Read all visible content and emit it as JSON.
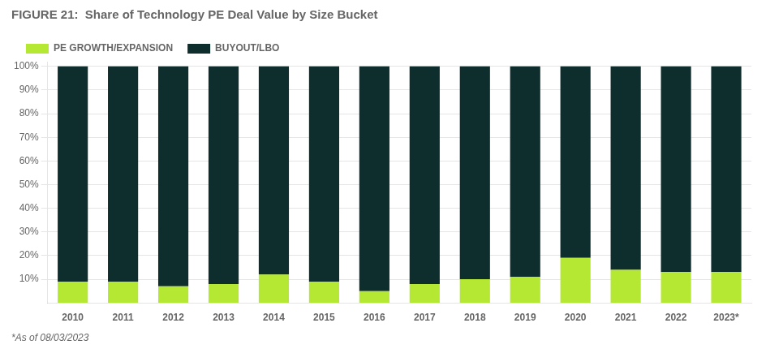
{
  "chart_data": {
    "type": "bar",
    "title": "FIGURE 21:  Share of Technology PE Deal Value by Size Bucket",
    "annotations": [
      "*As of 08/03/2023"
    ],
    "categories": [
      "2010",
      "2011",
      "2012",
      "2013",
      "2014",
      "2015",
      "2016",
      "2017",
      "2018",
      "2019",
      "2020",
      "2021",
      "2022",
      "2023*"
    ],
    "series": [
      {
        "name": "PE GROWTH/EXPANSION",
        "color": "#b5e832",
        "values": [
          9,
          9,
          7,
          8,
          12,
          9,
          5,
          8,
          10,
          11,
          19,
          14,
          13,
          13
        ]
      },
      {
        "name": "BUYOUT/LBO",
        "color": "#0d2e2c",
        "values": [
          91,
          91,
          93,
          92,
          88,
          91,
          95,
          92,
          90,
          89,
          81,
          86,
          87,
          87
        ]
      }
    ],
    "stacked": true,
    "ylim": [
      0,
      102
    ],
    "yticks": [
      {
        "value": 10,
        "label": "10%"
      },
      {
        "value": 20,
        "label": "20%"
      },
      {
        "value": 30,
        "label": "30%"
      },
      {
        "value": 40,
        "label": "40%"
      },
      {
        "value": 50,
        "label": "50%"
      },
      {
        "value": 60,
        "label": "60%"
      },
      {
        "value": 70,
        "label": "70%"
      },
      {
        "value": 80,
        "label": "80%"
      },
      {
        "value": 90,
        "label": "90%"
      },
      {
        "value": 100,
        "label": "100%"
      }
    ],
    "grid": true,
    "legend": "top"
  }
}
